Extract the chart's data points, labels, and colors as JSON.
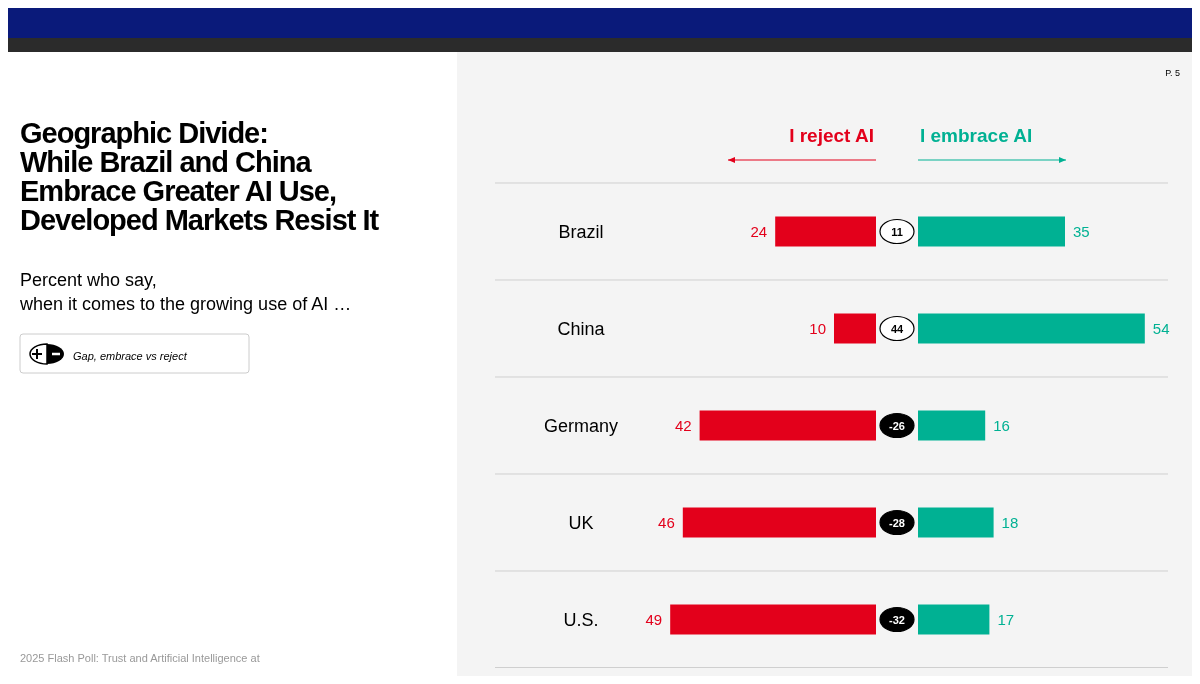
{
  "chart_data": [
    {
      "type": "other",
      "title": "Geographic Divide:\nWhile Brazil and China\nEmbrace Greater AI Use,\nDeveloped Markets Resist It",
      "subtitle": "Percent who say,\nwhen it comes to the growing use of AI …",
      "annotations": [
        "P. 5",
        "Gap, embrace vs reject",
        "2025 Flash Poll: Trust and Artificial Intelligence at"
      ]
    },
    {
      "type": "bar",
      "orientation": "horizontal",
      "categories": [
        "Brazil",
        "China",
        "Germany",
        "UK",
        "U.S."
      ],
      "series": [
        {
          "name": "I reject AI",
          "color": "#e3001b",
          "values": [
            24,
            10,
            42,
            46,
            49
          ]
        }
      ],
      "data_labels": true
    },
    {
      "type": "bar",
      "orientation": "horizontal",
      "categories": [
        null,
        null,
        null,
        null,
        null
      ],
      "series": [
        {
          "name": "I embrace AI",
          "color": "#00b193",
          "values": [
            35,
            54,
            16,
            18,
            17
          ]
        }
      ],
      "data_labels": true,
      "annotations": [
        "11",
        "44",
        "-26",
        "-28",
        "-32"
      ]
    }
  ]
}
